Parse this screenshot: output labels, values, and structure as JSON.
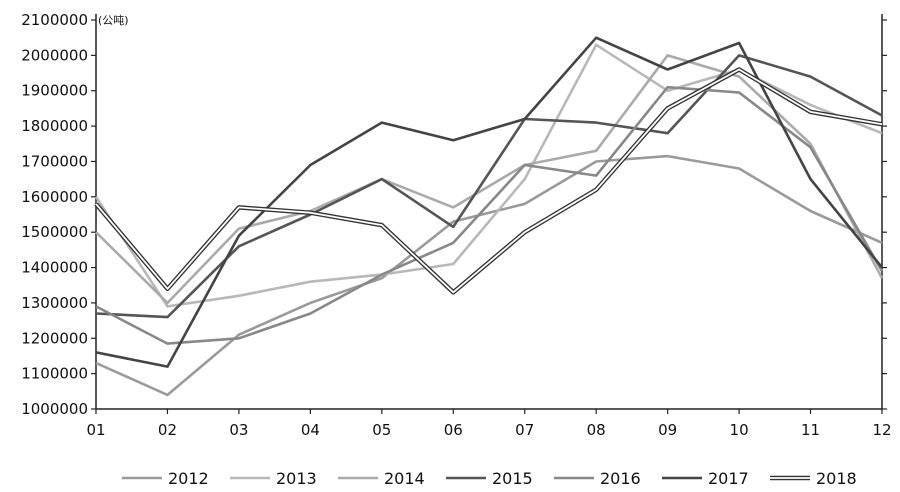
{
  "chart_data": {
    "type": "line",
    "unit_label": "(公吨)",
    "categories": [
      "01",
      "02",
      "03",
      "04",
      "05",
      "06",
      "07",
      "08",
      "09",
      "10",
      "11",
      "12"
    ],
    "ylim": [
      1000000,
      2100000
    ],
    "yticks": [
      "1000000",
      "1100000",
      "1200000",
      "1300000",
      "1400000",
      "1500000",
      "1600000",
      "1700000",
      "1800000",
      "1900000",
      "2000000",
      "2100000"
    ],
    "grid": false,
    "legend_position": "bottom",
    "series": [
      {
        "name": "2012",
        "color": "#9a9a9a",
        "values": [
          1130000,
          1040000,
          1210000,
          1300000,
          1370000,
          1530000,
          1580000,
          1700000,
          1715000,
          1680000,
          1560000,
          1470000
        ]
      },
      {
        "name": "2013",
        "color": "#b8b8b8",
        "values": [
          1600000,
          1290000,
          1320000,
          1360000,
          1380000,
          1410000,
          1650000,
          2030000,
          1900000,
          1960000,
          1860000,
          1780000
        ]
      },
      {
        "name": "2014",
        "color": "#aaaaaa",
        "values": [
          1500000,
          1300000,
          1510000,
          1560000,
          1650000,
          1570000,
          1690000,
          1730000,
          2000000,
          1940000,
          1750000,
          1370000
        ]
      },
      {
        "name": "2015",
        "color": "#555555",
        "values": [
          1270000,
          1260000,
          1460000,
          1550000,
          1650000,
          1515000,
          1820000,
          1810000,
          1780000,
          2000000,
          1940000,
          1830000
        ]
      },
      {
        "name": "2016",
        "color": "#888888",
        "values": [
          1290000,
          1185000,
          1200000,
          1270000,
          1380000,
          1470000,
          1690000,
          1660000,
          1910000,
          1895000,
          1740000,
          1390000
        ]
      },
      {
        "name": "2017",
        "color": "#444444",
        "values": [
          1160000,
          1120000,
          1490000,
          1690000,
          1810000,
          1760000,
          1820000,
          2050000,
          1960000,
          2035000,
          1650000,
          1400000
        ]
      },
      {
        "name": "2018",
        "color": "#333333",
        "double": true,
        "values": [
          1580000,
          1340000,
          1570000,
          1555000,
          1520000,
          1330000,
          1500000,
          1620000,
          1850000,
          1960000,
          1840000,
          1805000
        ]
      }
    ]
  }
}
